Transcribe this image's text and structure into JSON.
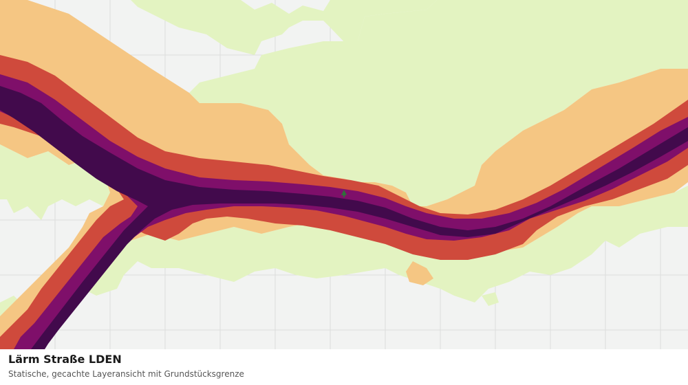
{
  "map": {
    "colors": {
      "background": "#f2f3f2",
      "grid": "#dcdedc",
      "band_low": "#e3f3c1",
      "band_mid": "#f5c683",
      "band_high": "#cf4a3c",
      "band_very_high": "#7f0f6a",
      "band_extreme": "#420a4c",
      "marker": "#2f6f3a"
    },
    "marker_icon": "tree-icon"
  },
  "caption": {
    "title": "Lärm Straße LDEN",
    "subtitle": "Statische, gecachte Layeransicht mit Grundstücksgrenze"
  }
}
